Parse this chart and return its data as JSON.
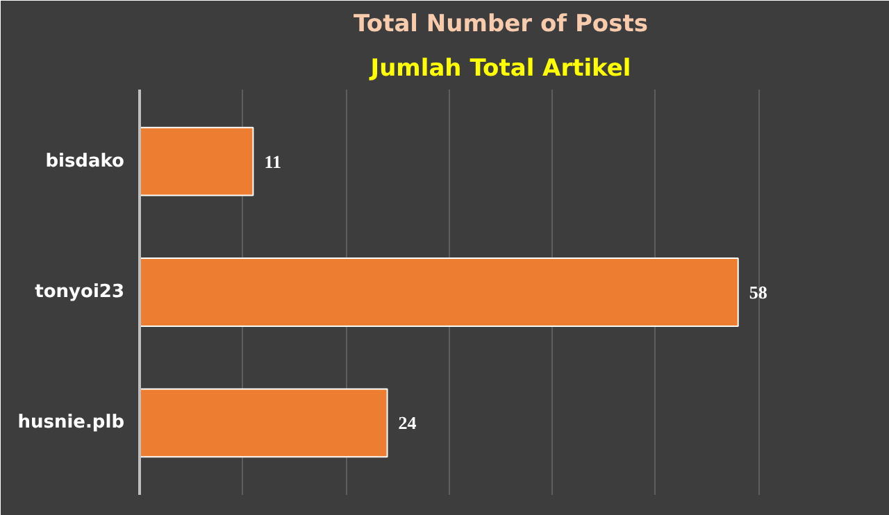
{
  "chart_data": {
    "type": "bar",
    "orientation": "horizontal",
    "title": "Total Number of Posts",
    "subtitle": "Jumlah Total Artikel",
    "categories": [
      "bisdako",
      "tonyoi23",
      "husnie.plb"
    ],
    "values": [
      11,
      58,
      24
    ],
    "color": "#ed7d31",
    "data_labels": true,
    "xlim": [
      0,
      70
    ],
    "xticks": [
      {
        "value": 0,
        "label": null
      },
      {
        "value": 10,
        "label": null
      },
      {
        "value": 20,
        "label": null
      },
      {
        "value": 30,
        "label": null
      },
      {
        "value": 40,
        "label": null
      },
      {
        "value": 50,
        "label": null
      },
      {
        "value": 60,
        "label": null
      },
      {
        "value": 70,
        "label": null
      }
    ],
    "grid": "x",
    "tick_labels": "y"
  }
}
